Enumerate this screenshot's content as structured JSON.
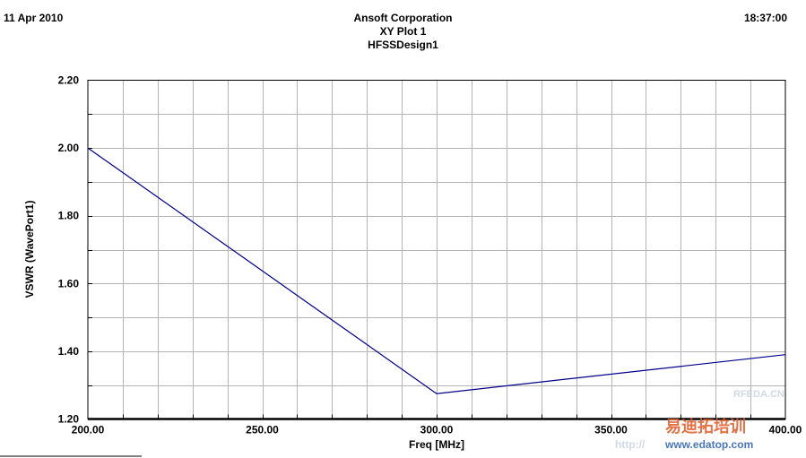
{
  "header": {
    "date": "11 Apr 2010",
    "time": "18:37:00",
    "company": "Ansoft Corporation",
    "plot_name": "XY Plot 1",
    "design": "HFSSDesign1"
  },
  "chart_data": {
    "type": "line",
    "xlabel": "Freq [MHz]",
    "ylabel": "VSWR (WavePort1)",
    "xlim": [
      200,
      400
    ],
    "ylim": [
      1.2,
      2.2
    ],
    "x_ticks": [
      "200.00",
      "250.00",
      "300.00",
      "350.00",
      "400.00"
    ],
    "y_ticks": [
      "1.20",
      "1.40",
      "1.60",
      "1.80",
      "2.00",
      "2.20"
    ],
    "grid": true,
    "series": [
      {
        "color": "#00008b",
        "x": [
          200,
          300,
          400
        ],
        "y": [
          2.0,
          1.275,
          1.39
        ]
      }
    ]
  },
  "watermark": {
    "site_short": "RFEDA.CN",
    "brand": "易迪拓培训",
    "url": "www.edatop.com",
    "faint_prefix": "http://"
  }
}
